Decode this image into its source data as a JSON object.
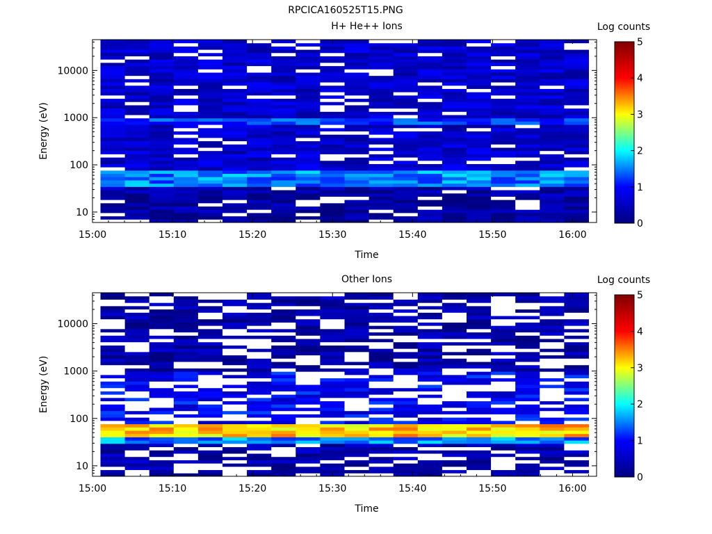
{
  "figure_title": "RPCICA160525T15.PNG",
  "chart_data": [
    {
      "type": "heatmap",
      "title": "H+ He++ Ions",
      "xlabel": "Time",
      "ylabel": "Energy (eV)",
      "colorbar_label": "Log counts",
      "yscale": "log",
      "ylim": [
        6,
        45000
      ],
      "xlim": [
        "15:00",
        "16:03"
      ],
      "x_ticks": [
        "15:00",
        "15:10",
        "15:20",
        "15:30",
        "15:40",
        "15:50",
        "16:00"
      ],
      "y_ticks": [
        "10",
        "100",
        "1000",
        "10000"
      ],
      "y_tick_values": [
        10,
        100,
        1000,
        10000
      ],
      "colorbar_ticks": [
        "0",
        "1",
        "2",
        "3",
        "4",
        "5"
      ],
      "colorbar_range": [
        0,
        5
      ],
      "colormap": [
        "#000080",
        "#0000ff",
        "#00ffff",
        "#ffff00",
        "#ff0000",
        "#800000"
      ],
      "time_columns": [
        "15:00",
        "15:03",
        "15:06",
        "15:09",
        "15:12",
        "15:16",
        "15:19",
        "15:22",
        "15:25",
        "15:28",
        "15:31",
        "15:35",
        "15:38",
        "15:41",
        "15:44",
        "15:47",
        "15:50",
        "15:54",
        "15:57",
        "16:00"
      ],
      "energy_bands_eV": [
        {
          "range": [
            6,
            20
          ],
          "log_counts": 0.2
        },
        {
          "range": [
            20,
            35
          ],
          "log_counts": 0.3
        },
        {
          "range": [
            35,
            80
          ],
          "log_counts": 1.5
        },
        {
          "range": [
            80,
            700
          ],
          "log_counts": 0.6
        },
        {
          "range": [
            700,
            1000
          ],
          "log_counts": 1.2
        },
        {
          "range": [
            1000,
            45000
          ],
          "log_counts": 0.6
        }
      ]
    },
    {
      "type": "heatmap",
      "title": "Other Ions",
      "xlabel": "Time",
      "ylabel": "Energy (eV)",
      "colorbar_label": "Log counts",
      "yscale": "log",
      "ylim": [
        6,
        45000
      ],
      "xlim": [
        "15:00",
        "16:03"
      ],
      "x_ticks": [
        "15:00",
        "15:10",
        "15:20",
        "15:30",
        "15:40",
        "15:50",
        "16:00"
      ],
      "y_ticks": [
        "10",
        "100",
        "1000",
        "10000"
      ],
      "y_tick_values": [
        10,
        100,
        1000,
        10000
      ],
      "colorbar_ticks": [
        "0",
        "1",
        "2",
        "3",
        "4",
        "5"
      ],
      "colorbar_range": [
        0,
        5
      ],
      "colormap": [
        "#000080",
        "#0000ff",
        "#00ffff",
        "#ffff00",
        "#ff0000",
        "#800000"
      ],
      "time_columns": [
        "15:00",
        "15:03",
        "15:06",
        "15:09",
        "15:12",
        "15:16",
        "15:19",
        "15:22",
        "15:25",
        "15:28",
        "15:31",
        "15:35",
        "15:38",
        "15:41",
        "15:44",
        "15:47",
        "15:50",
        "15:54",
        "15:57",
        "16:00"
      ],
      "energy_bands_eV": [
        {
          "range": [
            6,
            30
          ],
          "log_counts": 0.3
        },
        {
          "range": [
            30,
            38
          ],
          "log_counts": 1.5
        },
        {
          "range": [
            38,
            80
          ],
          "log_counts": 3.2
        },
        {
          "range": [
            80,
            1000
          ],
          "log_counts": 0.9
        },
        {
          "range": [
            1000,
            45000
          ],
          "log_counts": 0.3
        }
      ]
    }
  ]
}
